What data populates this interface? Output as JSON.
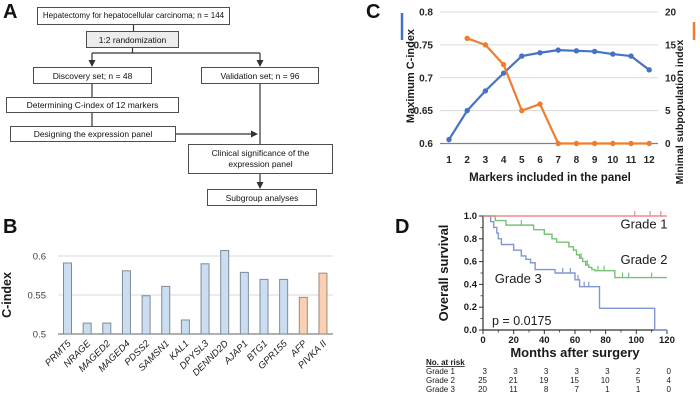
{
  "figure": {
    "panel_letters": {
      "A": "A",
      "B": "B",
      "C": "C",
      "D": "D"
    }
  },
  "panels": {
    "A": {
      "flowchart": {
        "boxes": {
          "hepatectomy": "Hepatectomy for hepatocellular carcinoma; n = 144",
          "randomization": "1:2 randomization",
          "discovery": "Discovery set; n = 48",
          "validation": "Validation set; n = 96",
          "determining": "Determining C-index of 12 markers",
          "designing": "Designing the expression panel",
          "clinical": "Clinical significance of the expression panel",
          "subgroup": "Subgroup analyses"
        }
      }
    }
  },
  "chart_data": [
    {
      "type": "bar",
      "title": "",
      "ylabel": "C-index",
      "xlabel": "",
      "ylim": [
        0.5,
        0.62
      ],
      "yticks": [
        0.5,
        0.55,
        0.6
      ],
      "ytick_labels": [
        "0.5",
        "0.55",
        "0.6"
      ],
      "categories": [
        "PRMT5",
        "NRAGE",
        "MAGED2",
        "MAGED4",
        "PDSS2",
        "SAMSN1",
        "KAL1",
        "DPYSL3",
        "DENND2D",
        "AJAP1",
        "BTG1",
        "GPR155",
        "AFP",
        "PIVKA II"
      ],
      "values": [
        0.591,
        0.514,
        0.514,
        0.581,
        0.549,
        0.561,
        0.518,
        0.59,
        0.607,
        0.579,
        0.57,
        0.57,
        0.547,
        0.578
      ],
      "highlight_indices": [
        12,
        13
      ],
      "colors": {
        "bar_fill": "#cbdef1",
        "bar_stroke": "#7f8b96",
        "highlight_fill": "#f9d0b4",
        "highlight_stroke": "#9b8a7b",
        "gridline": "#d9d9d9",
        "axis": "#808080"
      },
      "grid": true
    },
    {
      "type": "line",
      "title": "",
      "xlabel": "Markers included in the panel",
      "x": [
        1,
        2,
        3,
        4,
        5,
        6,
        7,
        8,
        9,
        10,
        11,
        12
      ],
      "xtick_labels": [
        "1",
        "2",
        "3",
        "4",
        "5",
        "6",
        "7",
        "8",
        "9",
        "10",
        "11",
        "12"
      ],
      "left_axis": {
        "label": "Maximum C-index",
        "lim": [
          0.6,
          0.8
        ],
        "ticks": [
          0.6,
          0.65,
          0.7,
          0.75,
          0.8
        ],
        "tick_labels": [
          "0.6",
          "0.65",
          "0.7",
          "0.75",
          "0.8"
        ],
        "color": "#4472c4"
      },
      "right_axis": {
        "label": "Minimal subpopulation index",
        "lim": [
          0,
          20
        ],
        "ticks": [
          0,
          5,
          10,
          15,
          20
        ],
        "tick_labels": [
          "0",
          "5",
          "10",
          "15",
          "20"
        ],
        "color": "#ed7d31"
      },
      "series": [
        {
          "name": "Maximum C-index",
          "axis": "left",
          "color": "#4472c4",
          "x": [
            1,
            2,
            3,
            4,
            5,
            6,
            7,
            8,
            9,
            10,
            11,
            12
          ],
          "values": [
            0.606,
            0.65,
            0.68,
            0.707,
            0.733,
            0.738,
            0.742,
            0.741,
            0.74,
            0.736,
            0.733,
            0.712
          ]
        },
        {
          "name": "Minimal subpopulation index",
          "axis": "right",
          "color": "#ed7d31",
          "x": [
            2,
            3,
            4,
            5,
            6,
            7,
            8,
            9,
            10,
            11,
            12
          ],
          "values": [
            16,
            15,
            12,
            5,
            6,
            0,
            0,
            0,
            0,
            0,
            0
          ]
        }
      ],
      "grid": true,
      "colors": {
        "gridline": "#d9d9d9",
        "axis": "#808080"
      }
    },
    {
      "type": "line",
      "subtype": "kaplan-meier",
      "xlabel": "Months after surgery",
      "ylabel": "Overall survival",
      "xlim": [
        0,
        120
      ],
      "ylim": [
        0.0,
        1.0
      ],
      "xticks": [
        0,
        20,
        40,
        60,
        80,
        100,
        120
      ],
      "xtick_labels": [
        "0",
        "20",
        "40",
        "60",
        "80",
        "100",
        "120"
      ],
      "yticks": [
        0.0,
        0.2,
        0.4,
        0.6,
        0.8,
        1.0
      ],
      "ytick_labels": [
        "0.0",
        "0.2",
        "0.4",
        "0.6",
        "0.8",
        "1.0"
      ],
      "p_value_text": "p = 0.0175",
      "series": [
        {
          "name": "Grade 3",
          "color": "#8097d2",
          "steps": [
            [
              0,
              1.0
            ],
            [
              5,
              0.95
            ],
            [
              7,
              0.9
            ],
            [
              9,
              0.85
            ],
            [
              10,
              0.8
            ],
            [
              12,
              0.75
            ],
            [
              20,
              0.7
            ],
            [
              25,
              0.65
            ],
            [
              28,
              0.62
            ],
            [
              31,
              0.59
            ],
            [
              34,
              0.53
            ],
            [
              47,
              0.5
            ],
            [
              60,
              0.44
            ],
            [
              63,
              0.38
            ],
            [
              76,
              0.19
            ],
            [
              112,
              0.19
            ],
            [
              112,
              0.0
            ],
            [
              120,
              0.0
            ]
          ],
          "censors": [
            [
              52,
              0.5
            ],
            [
              57,
              0.5
            ],
            [
              62,
              0.44
            ],
            [
              66,
              0.38
            ],
            [
              69,
              0.38
            ]
          ]
        },
        {
          "name": "Grade 2",
          "color": "#77c077",
          "steps": [
            [
              0,
              1.0
            ],
            [
              8,
              0.96
            ],
            [
              15,
              0.92
            ],
            [
              33,
              0.88
            ],
            [
              40,
              0.84
            ],
            [
              45,
              0.8
            ],
            [
              48,
              0.77
            ],
            [
              56,
              0.73
            ],
            [
              59,
              0.7
            ],
            [
              61,
              0.66
            ],
            [
              63,
              0.63
            ],
            [
              65,
              0.6
            ],
            [
              67,
              0.57
            ],
            [
              69,
              0.55
            ],
            [
              71,
              0.53
            ],
            [
              73,
              0.52
            ],
            [
              86,
              0.46
            ],
            [
              120,
              0.46
            ]
          ],
          "censors": [
            [
              25,
              0.92
            ],
            [
              64,
              0.63
            ],
            [
              68,
              0.57
            ],
            [
              75,
              0.52
            ],
            [
              79,
              0.52
            ],
            [
              91,
              0.46
            ],
            [
              95,
              0.46
            ],
            [
              110,
              0.46
            ]
          ]
        },
        {
          "name": "Grade 1",
          "color": "#f0888f",
          "steps": [
            [
              0,
              1.0
            ],
            [
              120,
              1.0
            ]
          ],
          "censors": [
            [
              99,
              1.0
            ],
            [
              109,
              1.0
            ],
            [
              116,
              1.0
            ]
          ]
        }
      ],
      "curve_labels": [
        {
          "text": "Grade 1",
          "month": 105,
          "survival": 0.93
        },
        {
          "text": "Grade 2",
          "month": 105,
          "survival": 0.62
        },
        {
          "text": "Grade 3",
          "month": 23,
          "survival": 0.45
        }
      ],
      "risk_table": {
        "title": "No. at risk",
        "columns_months": [
          0,
          20,
          40,
          60,
          80,
          100,
          120
        ],
        "rows": [
          {
            "name": "Grade 1",
            "counts": [
              "3",
              "3",
              "3",
              "3",
              "3",
              "2",
              "0"
            ]
          },
          {
            "name": "Grade 2",
            "counts": [
              "25",
              "21",
              "19",
              "15",
              "10",
              "5",
              "4"
            ]
          },
          {
            "name": "Grade 3",
            "counts": [
              "20",
              "11",
              "8",
              "7",
              "1",
              "1",
              "0"
            ]
          }
        ]
      }
    }
  ]
}
